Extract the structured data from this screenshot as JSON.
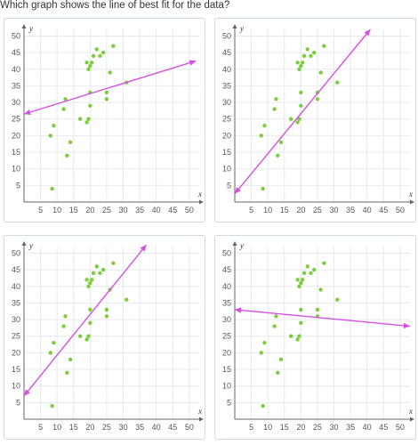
{
  "question": {
    "text": "Which graph shows the line of best fit for the data?"
  },
  "colors": {
    "point": "#7ccd3e",
    "line": "#d64fe3",
    "grid": "#e6e9ee",
    "axis": "#666666",
    "border": "#cfd8e3"
  },
  "chart_data": [
    {
      "type": "scatter",
      "title": "",
      "xlabel": "x",
      "ylabel": "y",
      "xlim": [
        0,
        53
      ],
      "ylim": [
        0,
        52
      ],
      "xticks": [
        5,
        10,
        15,
        20,
        25,
        30,
        35,
        40,
        45,
        50
      ],
      "yticks": [
        5,
        10,
        15,
        20,
        25,
        30,
        35,
        40,
        45,
        50
      ],
      "grid": true,
      "points": [
        [
          8,
          20
        ],
        [
          9,
          23
        ],
        [
          8.5,
          4
        ],
        [
          12,
          28
        ],
        [
          12.5,
          31
        ],
        [
          13,
          14
        ],
        [
          14,
          18
        ],
        [
          17,
          25
        ],
        [
          19,
          24
        ],
        [
          19.5,
          25
        ],
        [
          19,
          42
        ],
        [
          20,
          41
        ],
        [
          19.5,
          40
        ],
        [
          20.5,
          42
        ],
        [
          21,
          44
        ],
        [
          22,
          46
        ],
        [
          23,
          44
        ],
        [
          24,
          45
        ],
        [
          25,
          33
        ],
        [
          25,
          31
        ],
        [
          26,
          39
        ],
        [
          27,
          47
        ],
        [
          20,
          33
        ],
        [
          20,
          29
        ],
        [
          31,
          36
        ]
      ],
      "line": {
        "from": [
          0,
          26.5
        ],
        "to": [
          52,
          42.5
        ]
      }
    },
    {
      "type": "scatter",
      "title": "",
      "xlabel": "x",
      "ylabel": "y",
      "xlim": [
        0,
        53
      ],
      "ylim": [
        0,
        52
      ],
      "xticks": [
        5,
        10,
        15,
        20,
        25,
        30,
        35,
        40,
        45,
        50
      ],
      "yticks": [
        5,
        10,
        15,
        20,
        25,
        30,
        35,
        40,
        45,
        50
      ],
      "grid": true,
      "points": [
        [
          8,
          20
        ],
        [
          9,
          23
        ],
        [
          8.5,
          4
        ],
        [
          12,
          28
        ],
        [
          12.5,
          31
        ],
        [
          13,
          14
        ],
        [
          14,
          18
        ],
        [
          17,
          25
        ],
        [
          19,
          24
        ],
        [
          19.5,
          25
        ],
        [
          19,
          42
        ],
        [
          20,
          41
        ],
        [
          19.5,
          40
        ],
        [
          20.5,
          42
        ],
        [
          21,
          44
        ],
        [
          22,
          46
        ],
        [
          23,
          44
        ],
        [
          24,
          45
        ],
        [
          25,
          33
        ],
        [
          25,
          31
        ],
        [
          26,
          39
        ],
        [
          27,
          47
        ],
        [
          20,
          33
        ],
        [
          20,
          29
        ],
        [
          31,
          36
        ]
      ],
      "line": {
        "from": [
          0,
          2.5
        ],
        "to": [
          41,
          52
        ]
      }
    },
    {
      "type": "scatter",
      "title": "",
      "xlabel": "x",
      "ylabel": "y",
      "xlim": [
        0,
        53
      ],
      "ylim": [
        0,
        52
      ],
      "xticks": [
        5,
        10,
        15,
        20,
        25,
        30,
        35,
        40,
        45,
        50
      ],
      "yticks": [
        5,
        10,
        15,
        20,
        25,
        30,
        35,
        40,
        45,
        50
      ],
      "grid": true,
      "points": [
        [
          8,
          20
        ],
        [
          9,
          23
        ],
        [
          8.5,
          4
        ],
        [
          12,
          28
        ],
        [
          12.5,
          31
        ],
        [
          13,
          14
        ],
        [
          14,
          18
        ],
        [
          17,
          25
        ],
        [
          19,
          24
        ],
        [
          19.5,
          25
        ],
        [
          19,
          42
        ],
        [
          20,
          41
        ],
        [
          19.5,
          40
        ],
        [
          20.5,
          42
        ],
        [
          21,
          44
        ],
        [
          22,
          46
        ],
        [
          23,
          44
        ],
        [
          24,
          45
        ],
        [
          25,
          33
        ],
        [
          25,
          31
        ],
        [
          26,
          39
        ],
        [
          27,
          47
        ],
        [
          20,
          33
        ],
        [
          20,
          29
        ],
        [
          31,
          36
        ]
      ],
      "line": {
        "from": [
          0,
          7
        ],
        "to": [
          37,
          52.5
        ]
      }
    },
    {
      "type": "scatter",
      "title": "",
      "xlabel": "x",
      "ylabel": "y",
      "xlim": [
        0,
        53
      ],
      "ylim": [
        0,
        52
      ],
      "xticks": [
        5,
        10,
        15,
        20,
        25,
        30,
        35,
        40,
        45,
        50
      ],
      "yticks": [
        5,
        10,
        15,
        20,
        25,
        30,
        35,
        40,
        45,
        50
      ],
      "grid": true,
      "points": [
        [
          8,
          20
        ],
        [
          9,
          23
        ],
        [
          8.5,
          4
        ],
        [
          12,
          28
        ],
        [
          12.5,
          31
        ],
        [
          13,
          14
        ],
        [
          14,
          18
        ],
        [
          17,
          25
        ],
        [
          19,
          24
        ],
        [
          19.5,
          25
        ],
        [
          19,
          42
        ],
        [
          20,
          41
        ],
        [
          19.5,
          40
        ],
        [
          20.5,
          42
        ],
        [
          21,
          44
        ],
        [
          22,
          46
        ],
        [
          23,
          44
        ],
        [
          24,
          45
        ],
        [
          25,
          33
        ],
        [
          25,
          31
        ],
        [
          26,
          39
        ],
        [
          27,
          47
        ],
        [
          20,
          33
        ],
        [
          20,
          29
        ],
        [
          31,
          36
        ]
      ],
      "line": {
        "from": [
          0,
          33
        ],
        "to": [
          53,
          28
        ]
      }
    }
  ]
}
